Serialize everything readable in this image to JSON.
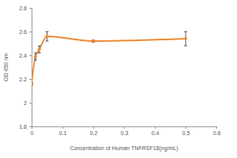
{
  "chart_data": {
    "type": "line",
    "x_label": "Concentration of Human TNFRSF18(ng/mL)",
    "y_label": "OD 450 nm",
    "x": [
      0,
      0.0125,
      0.025,
      0.05,
      0.2,
      0.5
    ],
    "values": [
      2.16,
      2.39,
      2.45,
      2.56,
      2.52,
      2.54
    ],
    "errors": [
      0.01,
      0.03,
      0.03,
      0.04,
      0.01,
      0.06
    ],
    "color": "#ed8a35",
    "marker": "circle",
    "xlim": [
      0,
      0.6
    ],
    "xticks": [
      0,
      0.1,
      0.2,
      0.3,
      0.4,
      0.5,
      0.6
    ],
    "ylim": [
      1.8,
      2.8
    ],
    "yticks": [
      1.8,
      2,
      2.2,
      2.4,
      2.6,
      2.8
    ]
  }
}
